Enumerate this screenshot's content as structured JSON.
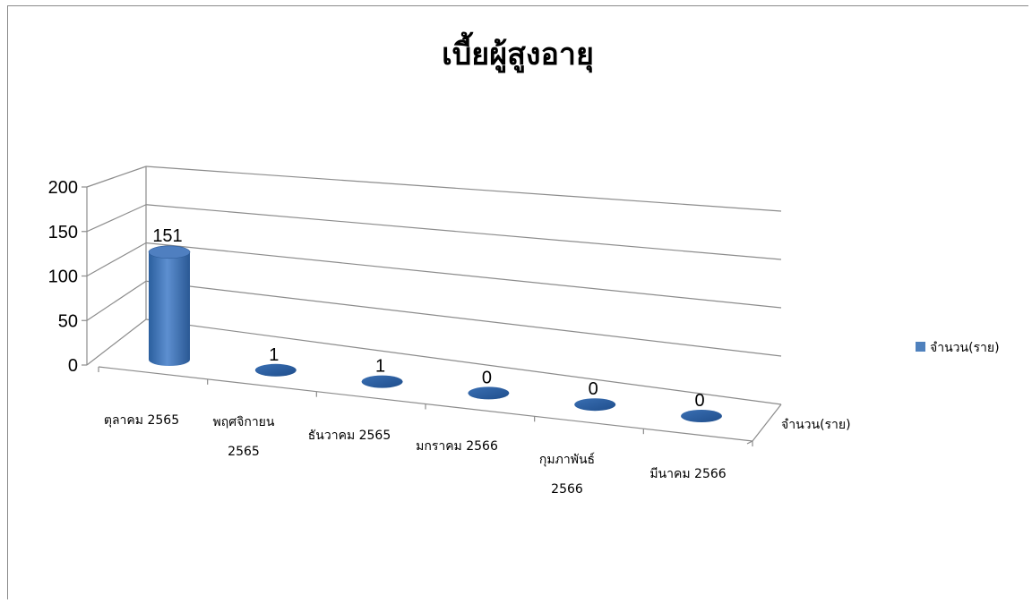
{
  "chart_data": {
    "type": "bar",
    "title": "เบี้ยผู้สูงอายุ",
    "categories": [
      [
        "ตุลาคม 2565"
      ],
      [
        "พฤศจิกายน",
        "2565"
      ],
      [
        "ธันวาคม 2565"
      ],
      [
        "มกราคม 2566"
      ],
      [
        "กุมภาพันธ์",
        "2566"
      ],
      [
        "มีนาคม 2566"
      ]
    ],
    "series": [
      {
        "name": "จำนวน(ราย)",
        "values": [
          151,
          1,
          1,
          0,
          0,
          0
        ]
      }
    ],
    "ylim": [
      0,
      200
    ],
    "yticks": [
      0,
      50,
      100,
      150,
      200
    ],
    "data_labels": [
      "151",
      "1",
      "1",
      "0",
      "0",
      "0"
    ],
    "depth_axis_label": "จำนวน(ราย)",
    "legend": {
      "placement": "right",
      "entries": [
        "จำนวน(ราย)"
      ]
    },
    "grid": true,
    "style": "3d-cylinder",
    "bar_color": "#4f81bd"
  }
}
